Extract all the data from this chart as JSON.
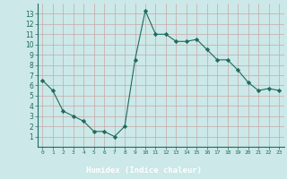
{
  "title": "",
  "xlabel": "Humidex (Indice chaleur)",
  "x_values": [
    0,
    1,
    2,
    3,
    4,
    5,
    6,
    7,
    8,
    9,
    10,
    11,
    12,
    13,
    14,
    15,
    16,
    17,
    18,
    19,
    20,
    21,
    22,
    23
  ],
  "y_values": [
    6.5,
    5.5,
    3.5,
    3.0,
    2.5,
    1.5,
    1.5,
    1.0,
    2.0,
    8.5,
    13.3,
    11.0,
    11.0,
    10.3,
    10.3,
    10.5,
    9.5,
    8.5,
    8.5,
    7.5,
    6.3,
    5.5,
    5.7,
    5.5
  ],
  "line_color": "#1e6b5e",
  "marker": "D",
  "marker_size": 2.2,
  "bg_color": "#cce8e8",
  "grid_color_major": "#c8a8a8",
  "grid_color_minor": "#ddd0d0",
  "ylim": [
    0,
    14
  ],
  "xlim": [
    -0.5,
    23.5
  ],
  "yticks": [
    1,
    2,
    3,
    4,
    5,
    6,
    7,
    8,
    9,
    10,
    11,
    12,
    13
  ],
  "xticks": [
    0,
    1,
    2,
    3,
    4,
    5,
    6,
    7,
    8,
    9,
    10,
    11,
    12,
    13,
    14,
    15,
    16,
    17,
    18,
    19,
    20,
    21,
    22,
    23
  ],
  "bottom_bar_color": "#336b6b",
  "bottom_bar_text_color": "#ffffff",
  "tick_color": "#1e6b5e"
}
